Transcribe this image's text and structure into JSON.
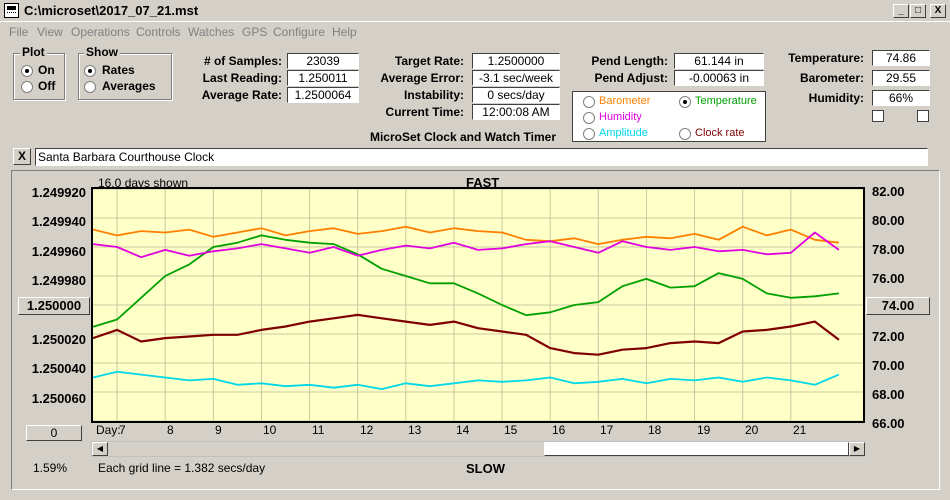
{
  "window": {
    "title": "C:\\microset\\2017_07_21.mst",
    "buttons": [
      "_",
      "□",
      "X"
    ]
  },
  "menu": [
    "File",
    "View",
    "Operations",
    "Controls",
    "Watches",
    "GPS",
    "Configure",
    "Help"
  ],
  "plot_group": {
    "title": "Plot",
    "options": [
      {
        "label": "On",
        "selected": true
      },
      {
        "label": "Off",
        "selected": false
      }
    ]
  },
  "show_group": {
    "title": "Show",
    "options": [
      {
        "label": "Rates",
        "selected": true
      },
      {
        "label": "Averages",
        "selected": false
      }
    ]
  },
  "stats": {
    "samples_label": "# of Samples:",
    "samples": "23039",
    "last_reading_label": "Last Reading:",
    "last_reading": "1.250011",
    "average_rate_label": "Average Rate:",
    "average_rate": "1.2500064",
    "target_rate_label": "Target Rate:",
    "target_rate": "1.2500000",
    "average_error_label": "Average Error:",
    "average_error": "-3.1 sec/week",
    "instability_label": "Instability:",
    "instability": "0 secs/day",
    "current_time_label": "Current Time:",
    "current_time": "12:00:08 AM",
    "pend_length_label": "Pend Length:",
    "pend_length": "61.144 in",
    "pend_adjust_label": "Pend Adjust:",
    "pend_adjust": "-0.00063 in",
    "temperature_label": "Temperature:",
    "temperature": "74.86",
    "barometer_label": "Barometer:",
    "barometer": "29.55",
    "humidity_label": "Humidity:",
    "humidity": "66%"
  },
  "app_caption": "MicroSet Clock and Watch Timer",
  "sensors": [
    {
      "label": "Barometer",
      "color": "#ff8000",
      "selected": false
    },
    {
      "label": "Temperature",
      "color": "#00a000",
      "selected": true
    },
    {
      "label": "Humidity",
      "color": "#e000e0",
      "selected": false
    },
    {
      "label": "Amplitude",
      "color": "#00d8e8",
      "selected": false
    },
    {
      "label": "Clock rate",
      "color": "#800000",
      "selected": false
    }
  ],
  "clock_name": "Santa Barbara Courthouse Clock",
  "close_label": "X",
  "chart_header": {
    "days_shown": "16.0 days shown",
    "top": "FAST",
    "bottom": "SLOW",
    "day_label": "Day:",
    "grid_note": "Each grid line = 1.382 secs/day",
    "percent": "1.59%",
    "left_button": "1.250000",
    "right_button": "74.00",
    "bottom_button": "0"
  },
  "chart_data": {
    "type": "line",
    "x_label": "Day",
    "x_ticks": [
      "7",
      "8",
      "9",
      "10",
      "11",
      "12",
      "13",
      "14",
      "15",
      "16",
      "17",
      "18",
      "19",
      "20",
      "21"
    ],
    "x_range": [
      6.5,
      22.5
    ],
    "left_axis_ticks": [
      "1.249920",
      "1.249940",
      "1.249960",
      "1.249980",
      "1.250000",
      "1.250020",
      "1.250040",
      "1.250060"
    ],
    "left_range": [
      1.24992,
      1.25006
    ],
    "right_axis_ticks": [
      "82.00",
      "80.00",
      "78.00",
      "76.00",
      "74.00",
      "72.00",
      "70.00",
      "68.00",
      "66.00"
    ],
    "right_range": [
      66,
      82
    ],
    "series": [
      {
        "name": "Barometer",
        "color": "#ff8000",
        "x": [
          6.5,
          7,
          7.5,
          8,
          8.5,
          9,
          9.5,
          10,
          10.5,
          11,
          11.5,
          12,
          12.5,
          13,
          13.5,
          14,
          14.5,
          15,
          15.5,
          16,
          16.5,
          17,
          17.5,
          18,
          18.5,
          19,
          19.5,
          20,
          20.5,
          21,
          21.5,
          22
        ],
        "y": [
          79.2,
          78.8,
          79.1,
          79.0,
          79.2,
          78.7,
          79.0,
          79.3,
          78.8,
          79.1,
          79.3,
          78.9,
          79.1,
          79.4,
          79.0,
          79.3,
          79.1,
          79.0,
          78.5,
          78.4,
          78.6,
          78.2,
          78.5,
          78.7,
          78.6,
          78.9,
          78.5,
          79.4,
          78.8,
          79.2,
          78.5,
          78.3
        ]
      },
      {
        "name": "Temperature",
        "color": "#00a000",
        "x": [
          6.5,
          7,
          7.5,
          8,
          8.5,
          9,
          9.5,
          10,
          10.5,
          11,
          11.5,
          12,
          12.5,
          13,
          13.5,
          14,
          14.5,
          15,
          15.5,
          16,
          16.5,
          17,
          17.5,
          18,
          18.5,
          19,
          19.5,
          20,
          20.5,
          21,
          21.5,
          22
        ],
        "y": [
          72.5,
          73.0,
          74.5,
          76.0,
          76.8,
          78.0,
          78.3,
          78.8,
          78.5,
          78.3,
          78.2,
          77.5,
          76.5,
          76.0,
          75.5,
          75.5,
          74.8,
          74.0,
          73.3,
          73.5,
          74.0,
          74.2,
          75.3,
          75.8,
          75.2,
          75.3,
          76.2,
          75.8,
          74.8,
          74.5,
          74.6,
          74.8
        ]
      },
      {
        "name": "Humidity",
        "color": "#e000e0",
        "x": [
          6.5,
          7,
          7.5,
          8,
          8.5,
          9,
          9.5,
          10,
          10.5,
          11,
          11.5,
          12,
          12.5,
          13,
          13.5,
          14,
          14.5,
          15,
          15.5,
          16,
          16.5,
          17,
          17.5,
          18,
          18.5,
          19,
          19.5,
          20,
          20.5,
          21,
          21.5,
          22
        ],
        "y": [
          78.2,
          78.0,
          77.3,
          77.8,
          77.4,
          77.7,
          77.9,
          78.2,
          77.9,
          77.6,
          78.0,
          77.4,
          77.8,
          78.1,
          77.9,
          78.3,
          77.8,
          77.9,
          78.2,
          78.4,
          78.0,
          77.6,
          78.4,
          78.0,
          77.8,
          78.0,
          77.7,
          77.8,
          77.5,
          77.6,
          79.0,
          77.8
        ]
      },
      {
        "name": "Amplitude",
        "color": "#00d8e8",
        "x": [
          6.5,
          7,
          7.5,
          8,
          8.5,
          9,
          9.5,
          10,
          10.5,
          11,
          11.5,
          12,
          12.5,
          13,
          13.5,
          14,
          14.5,
          15,
          15.5,
          16,
          16.5,
          17,
          17.5,
          18,
          18.5,
          19,
          19.5,
          20,
          20.5,
          21,
          21.5,
          22
        ],
        "y": [
          69.0,
          69.4,
          69.2,
          69.0,
          68.8,
          68.9,
          68.5,
          68.6,
          68.4,
          68.5,
          68.3,
          68.5,
          68.2,
          68.6,
          68.4,
          68.6,
          68.8,
          68.7,
          68.8,
          69.0,
          68.6,
          68.7,
          68.9,
          68.6,
          68.9,
          68.8,
          69.0,
          68.7,
          69.0,
          68.8,
          68.5,
          69.2
        ]
      },
      {
        "name": "Clock rate",
        "color": "#800000",
        "x": [
          6.5,
          7,
          7.5,
          8,
          8.5,
          9,
          9.5,
          10,
          10.5,
          11,
          11.5,
          12,
          12.5,
          13,
          13.5,
          14,
          14.5,
          15,
          15.5,
          16,
          16.5,
          17,
          17.5,
          18,
          18.5,
          19,
          19.5,
          20,
          20.5,
          21,
          21.5,
          22
        ],
        "y": [
          1.25001,
          1.250005,
          1.250012,
          1.25001,
          1.250009,
          1.250008,
          1.250008,
          1.250005,
          1.250003,
          1.25,
          1.249998,
          1.249996,
          1.249998,
          1.25,
          1.250002,
          1.25,
          1.250004,
          1.250006,
          1.250008,
          1.250016,
          1.250019,
          1.25002,
          1.250017,
          1.250016,
          1.250013,
          1.250012,
          1.250013,
          1.250006,
          1.250005,
          1.250003,
          1.25,
          1.250011
        ]
      }
    ]
  }
}
